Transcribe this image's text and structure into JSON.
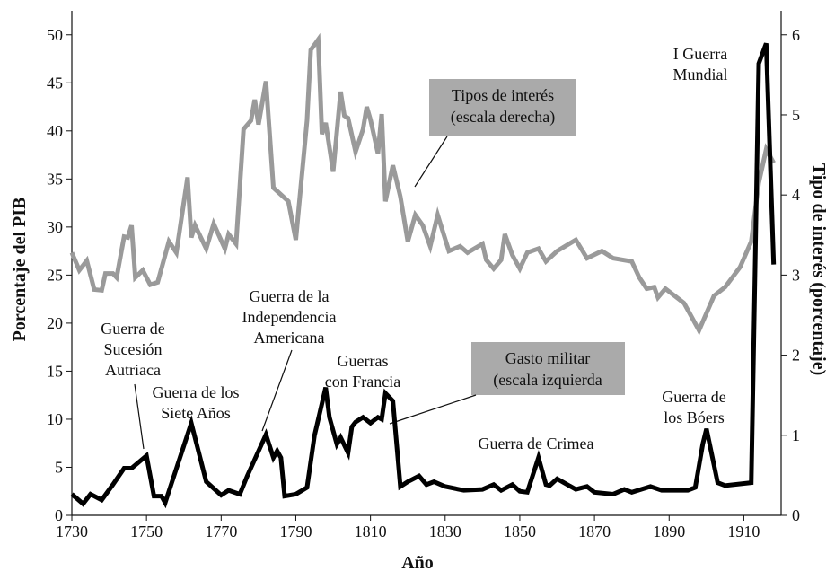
{
  "chart_data": {
    "type": "line",
    "x_label": "Año",
    "y_label": "Porcentaje del PIB",
    "y2_label": "Tipo de interés (porcentaje)",
    "xlim": [
      1730,
      1920
    ],
    "xticks": [
      1730,
      1750,
      1770,
      1790,
      1810,
      1830,
      1850,
      1870,
      1890,
      1910
    ],
    "ylim": [
      0,
      52.5
    ],
    "yticks": [
      0,
      5,
      10,
      15,
      20,
      25,
      30,
      35,
      40,
      45,
      50
    ],
    "y2lim": [
      0,
      6.3
    ],
    "y2ticks": [
      0,
      1,
      2,
      3,
      4,
      5,
      6
    ],
    "series": [
      {
        "name": [
          "Tipos de interés",
          "(escala derecha)"
        ],
        "color": "#9a9a9a",
        "axis": "y2",
        "x": [
          1730,
          1732,
          1734,
          1736,
          1738,
          1739,
          1741,
          1742,
          1744,
          1745,
          1746,
          1747,
          1749,
          1751,
          1753,
          1756,
          1758,
          1761,
          1762,
          1763,
          1766,
          1768,
          1771,
          1772,
          1774,
          1776,
          1778,
          1779,
          1780,
          1782,
          1784,
          1788,
          1790,
          1793,
          1794,
          1796,
          1797,
          1798,
          1800,
          1802,
          1803,
          1804,
          1806,
          1808,
          1809,
          1810,
          1812,
          1813,
          1814,
          1816,
          1818,
          1820,
          1822,
          1824,
          1826,
          1828,
          1831,
          1834,
          1836,
          1840,
          1841,
          1843,
          1845,
          1846,
          1848,
          1850,
          1852,
          1855,
          1857,
          1860,
          1865,
          1868,
          1872,
          1875,
          1880,
          1882,
          1884,
          1886,
          1887,
          1889,
          1894,
          1898,
          1902,
          1905,
          1909,
          1912,
          1914,
          1916,
          1918
        ],
        "values": [
          3.28,
          3.06,
          3.18,
          2.82,
          2.81,
          3.02,
          3.02,
          2.97,
          3.48,
          3.47,
          3.62,
          2.97,
          3.06,
          2.88,
          2.91,
          3.42,
          3.28,
          4.22,
          3.47,
          3.62,
          3.33,
          3.64,
          3.33,
          3.51,
          3.39,
          4.82,
          4.93,
          5.19,
          4.88,
          5.42,
          4.09,
          3.92,
          3.44,
          4.93,
          5.81,
          5.94,
          4.76,
          4.9,
          4.29,
          5.29,
          4.99,
          4.96,
          4.54,
          4.82,
          5.1,
          4.94,
          4.52,
          5.01,
          3.92,
          4.37,
          3.98,
          3.42,
          3.75,
          3.62,
          3.36,
          3.75,
          3.3,
          3.36,
          3.28,
          3.39,
          3.19,
          3.08,
          3.19,
          3.51,
          3.25,
          3.08,
          3.28,
          3.33,
          3.17,
          3.3,
          3.44,
          3.21,
          3.3,
          3.21,
          3.17,
          2.97,
          2.83,
          2.85,
          2.72,
          2.83,
          2.65,
          2.31,
          2.74,
          2.85,
          3.1,
          3.42,
          4.15,
          4.57,
          4.4
        ]
      },
      {
        "name": [
          "Gasto militar",
          "(escala izquierda"
        ],
        "color": "#000000",
        "axis": "y",
        "x": [
          1730,
          1733,
          1735,
          1738,
          1741,
          1744,
          1746,
          1750,
          1752,
          1754,
          1755,
          1762,
          1766,
          1770,
          1772,
          1775,
          1777,
          1782,
          1784,
          1785,
          1786,
          1787,
          1790,
          1793,
          1795,
          1798,
          1799,
          1801,
          1802,
          1804,
          1805,
          1806,
          1808,
          1810,
          1812,
          1813,
          1814,
          1816,
          1818,
          1820,
          1823,
          1825,
          1827,
          1830,
          1835,
          1840,
          1843,
          1845,
          1848,
          1850,
          1852,
          1855,
          1857,
          1858,
          1860,
          1865,
          1868,
          1870,
          1875,
          1878,
          1880,
          1885,
          1888,
          1895,
          1897,
          1899,
          1900,
          1903,
          1905,
          1912,
          1914,
          1916,
          1918
        ],
        "values": [
          2.2,
          1.2,
          2.2,
          1.6,
          3.2,
          4.9,
          4.9,
          6.2,
          2.0,
          2.0,
          1.3,
          9.6,
          3.5,
          2.1,
          2.6,
          2.2,
          4.1,
          8.4,
          6.0,
          6.7,
          6.0,
          2.0,
          2.2,
          2.9,
          8.3,
          13.3,
          10.2,
          7.4,
          8.1,
          6.5,
          9.2,
          9.7,
          10.2,
          9.6,
          10.2,
          10.0,
          12.7,
          11.9,
          3.0,
          3.5,
          4.1,
          3.2,
          3.5,
          3.0,
          2.6,
          2.7,
          3.2,
          2.6,
          3.2,
          2.5,
          2.4,
          6.0,
          3.2,
          3.1,
          3.8,
          2.7,
          3.0,
          2.4,
          2.2,
          2.7,
          2.4,
          3.0,
          2.6,
          2.6,
          2.9,
          7.4,
          9.0,
          3.4,
          3.1,
          3.4,
          47,
          49.1,
          26.1
        ]
      }
    ],
    "annotations": [
      [
        "Guerra de",
        "Sucesión",
        "Autriaca"
      ],
      [
        "Guerra de los",
        "Siete Años"
      ],
      [
        "Guerra de la",
        "Independencia",
        "Americana"
      ],
      [
        "Guerras",
        "con Francia"
      ],
      [
        "Guerra de Crimea"
      ],
      [
        "Guerra de",
        "los Bóers"
      ],
      [
        "I Guerra",
        "Mundial"
      ]
    ]
  }
}
